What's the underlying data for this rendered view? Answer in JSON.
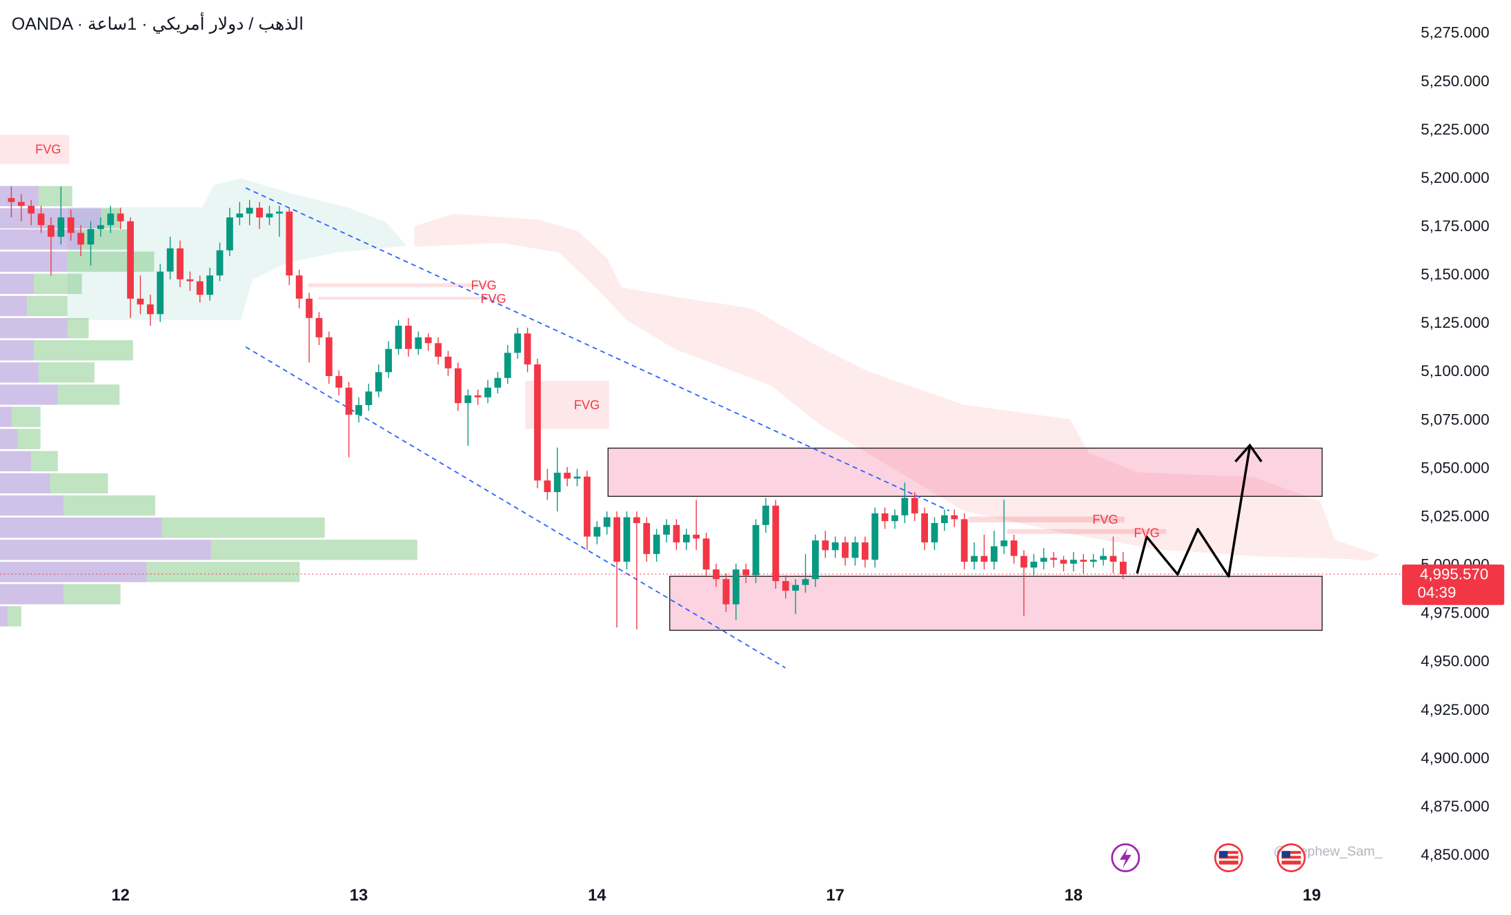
{
  "chart_data": {
    "type": "candlestick",
    "title": "OANDA · الذهب / دولار أمريكي · 1ساعة",
    "x": [
      -11,
      -10,
      -9,
      -8,
      -7,
      -6,
      -5,
      -4,
      -3,
      -2,
      -1,
      0,
      1,
      2,
      3,
      4,
      5,
      6,
      7,
      8,
      9,
      10,
      11,
      12,
      13,
      14,
      15,
      16,
      17,
      18,
      19,
      20,
      21,
      22,
      23,
      24,
      25,
      26,
      27,
      28,
      29,
      30,
      31,
      32,
      33,
      34,
      35,
      36,
      37,
      38,
      39,
      40,
      41,
      42,
      43,
      44,
      45,
      46,
      47,
      48,
      49,
      50,
      51,
      52,
      53,
      54,
      55,
      56,
      57,
      58,
      59,
      60,
      61,
      62,
      63,
      64,
      65,
      66,
      67,
      68,
      69,
      70,
      71,
      72,
      73,
      74,
      75,
      76,
      77,
      78,
      79,
      80,
      81,
      82,
      83,
      84,
      85,
      86,
      87,
      88,
      89,
      90,
      91,
      92,
      93,
      94,
      95,
      96,
      97,
      98,
      99,
      100,
      101
    ],
    "open": [
      5190,
      5188,
      5186,
      5182,
      5176,
      5170,
      5180,
      5172,
      5166,
      5174,
      5176,
      5182,
      5178,
      5138,
      5135,
      5130,
      5152,
      5164,
      5148,
      5147,
      5140,
      5150,
      5163,
      5180,
      5182,
      5185,
      5180,
      5182,
      5183,
      5150,
      5138,
      5128,
      5118,
      5098,
      5092,
      5078,
      5083,
      5090,
      5100,
      5112,
      5124,
      5112,
      5118,
      5115,
      5108,
      5102,
      5084,
      5088,
      5087,
      5092,
      5097,
      5110,
      5120,
      5104,
      5044,
      5038,
      5048,
      5045,
      5046,
      5015,
      5020,
      5025,
      5002,
      5025,
      5022,
      5006,
      5016,
      5021,
      5012,
      5016,
      5014,
      4998,
      4993,
      4980,
      4998,
      4995,
      5021,
      5031,
      4992,
      4987,
      4990,
      4993,
      5013,
      5008,
      5012,
      5004,
      5012,
      5003,
      5027,
      5023,
      5026,
      5035,
      5027,
      5012,
      5022,
      5026,
      5024,
      5002,
      5005,
      5002,
      5010,
      5013,
      5005,
      4999,
      5002,
      5004,
      5003,
      5001,
      5003,
      5002,
      5003,
      5005,
      5002
    ],
    "high": [
      5196,
      5192,
      5189,
      5186,
      5180,
      5196,
      5184,
      5176,
      5178,
      5180,
      5186,
      5185,
      5180,
      5150,
      5140,
      5156,
      5170,
      5168,
      5152,
      5150,
      5154,
      5167,
      5185,
      5188,
      5189,
      5188,
      5186,
      5186,
      5185,
      5153,
      5141,
      5131,
      5121,
      5101,
      5095,
      5087,
      5094,
      5104,
      5116,
      5127,
      5128,
      5121,
      5120,
      5118,
      5111,
      5105,
      5091,
      5091,
      5096,
      5100,
      5114,
      5123,
      5123,
      5107,
      5050,
      5061,
      5051,
      5050,
      5049,
      5023,
      5028,
      5028,
      5028,
      5028,
      5025,
      5019,
      5024,
      5024,
      5019,
      5034,
      5017,
      5001,
      4996,
      5001,
      5001,
      5024,
      5035,
      5034,
      4995,
      4993,
      5006,
      5016,
      5018,
      5015,
      5015,
      5015,
      5015,
      5030,
      5030,
      5029,
      5043,
      5038,
      5030,
      5025,
      5029,
      5029,
      5027,
      5012,
      5016,
      5018,
      5034,
      5016,
      5008,
      5006,
      5009,
      5007,
      5005,
      5007,
      5006,
      5006,
      5009,
      5015,
      5007
    ],
    "low": [
      5180,
      5178,
      5176,
      5172,
      5150,
      5166,
      5168,
      5160,
      5155,
      5170,
      5172,
      5174,
      5128,
      5130,
      5124,
      5126,
      5148,
      5144,
      5142,
      5136,
      5137,
      5147,
      5160,
      5176,
      5176,
      5174,
      5176,
      5170,
      5145,
      5133,
      5105,
      5114,
      5094,
      5088,
      5056,
      5074,
      5080,
      5087,
      5097,
      5109,
      5108,
      5109,
      5111,
      5104,
      5098,
      5080,
      5062,
      5083,
      5084,
      5089,
      5094,
      5107,
      5100,
      5040,
      5034,
      5028,
      5041,
      5041,
      5008,
      5011,
      5016,
      4968,
      4998,
      4967,
      5002,
      5002,
      5012,
      5008,
      5008,
      5008,
      4994,
      4989,
      4976,
      4972,
      4991,
      4991,
      5017,
      4988,
      4983,
      4975,
      4986,
      4989,
      5004,
      5004,
      5000,
      5000,
      4999,
      4999,
      5019,
      5019,
      5022,
      5023,
      5008,
      5008,
      5018,
      5020,
      4998,
      4998,
      4998,
      4998,
      5006,
      5001,
      4974,
      4995,
      4998,
      4999,
      4997,
      4997,
      4996,
      4999,
      5000,
      4996,
      4993
    ],
    "close": [
      5188,
      5186,
      5182,
      5176,
      5170,
      5180,
      5172,
      5166,
      5174,
      5176,
      5182,
      5178,
      5138,
      5135,
      5130,
      5152,
      5164,
      5148,
      5147,
      5140,
      5150,
      5163,
      5180,
      5182,
      5185,
      5180,
      5182,
      5183,
      5150,
      5138,
      5128,
      5118,
      5098,
      5092,
      5078,
      5083,
      5090,
      5100,
      5112,
      5124,
      5112,
      5118,
      5115,
      5108,
      5102,
      5084,
      5088,
      5087,
      5092,
      5097,
      5110,
      5120,
      5104,
      5044,
      5038,
      5048,
      5045,
      5046,
      5015,
      5020,
      5025,
      5002,
      5025,
      5022,
      5006,
      5016,
      5021,
      5012,
      5016,
      5014,
      4998,
      4993,
      4980,
      4998,
      4995,
      5021,
      5031,
      4992,
      4987,
      4990,
      4993,
      5013,
      5008,
      5012,
      5004,
      5012,
      5003,
      5027,
      5023,
      5026,
      5035,
      5027,
      5012,
      5022,
      5026,
      5024,
      5002,
      5005,
      5002,
      5010,
      5013,
      5005,
      4999,
      5002,
      5004,
      5003,
      5001,
      5003,
      5002,
      5003,
      5005,
      5002,
      4995.57
    ],
    "up_color": "#089981",
    "down_color": "#f23645",
    "xlim": [
      -12.14,
      129.1
    ],
    "xticks": [
      {
        "value": 0,
        "label": "12"
      },
      {
        "value": 24,
        "label": "13"
      },
      {
        "value": 48,
        "label": "14"
      },
      {
        "value": 72,
        "label": "17"
      },
      {
        "value": 96,
        "label": "18"
      },
      {
        "value": 120,
        "label": "19"
      }
    ],
    "ylim": [
      4839,
      5292.4
    ],
    "yticks": [
      {
        "value": 5275,
        "label": "5,275.000"
      },
      {
        "value": 5250,
        "label": "5,250.000"
      },
      {
        "value": 5225,
        "label": "5,225.000"
      },
      {
        "value": 5200,
        "label": "5,200.000"
      },
      {
        "value": 5175,
        "label": "5,175.000"
      },
      {
        "value": 5150,
        "label": "5,150.000"
      },
      {
        "value": 5125,
        "label": "5,125.000"
      },
      {
        "value": 5100,
        "label": "5,100.000"
      },
      {
        "value": 5075,
        "label": "5,075.000"
      },
      {
        "value": 5050,
        "label": "5,050.000"
      },
      {
        "value": 5025,
        "label": "5,025.000"
      },
      {
        "value": 5000,
        "label": "5,000.000"
      },
      {
        "value": 4975,
        "label": "4,975.000"
      },
      {
        "value": 4950,
        "label": "4,950.000"
      },
      {
        "value": 4925,
        "label": "4,925.000"
      },
      {
        "value": 4900,
        "label": "4,900.000"
      },
      {
        "value": 4875,
        "label": "4,875.000"
      },
      {
        "value": 4850,
        "label": "4,850.000"
      }
    ],
    "last_price_label": "4,995.570",
    "countdown": "04:39",
    "annotations": [
      "FVG",
      "FVG",
      "FVG",
      "FVG",
      "FVG",
      "FVG"
    ],
    "watermark": "@Stephew_Sam_"
  }
}
